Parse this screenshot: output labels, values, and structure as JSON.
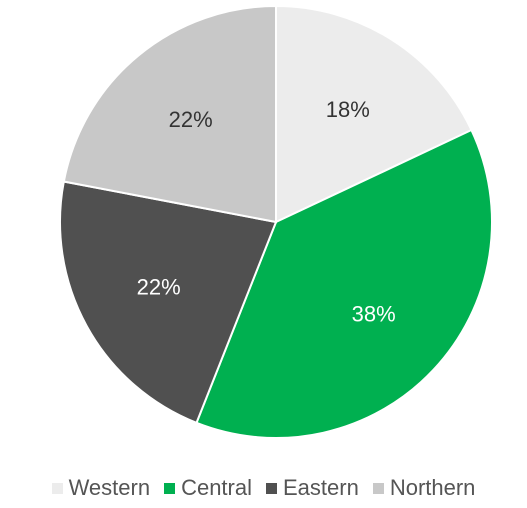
{
  "chart_data": {
    "type": "pie",
    "slices": [
      {
        "label": "Western",
        "value": 18,
        "display": "18%",
        "color": "#ececec",
        "text_color": "#333333"
      },
      {
        "label": "Central",
        "value": 38,
        "display": "38%",
        "color": "#00b050",
        "text_color": "#ffffff"
      },
      {
        "label": "Eastern",
        "value": 22,
        "display": "22%",
        "color": "#505050",
        "text_color": "#ffffff"
      },
      {
        "label": "Northern",
        "value": 22,
        "display": "22%",
        "color": "#c8c8c8",
        "text_color": "#333333"
      }
    ],
    "legend_position": "bottom",
    "start_angle": "12 o'clock",
    "direction": "clockwise"
  }
}
